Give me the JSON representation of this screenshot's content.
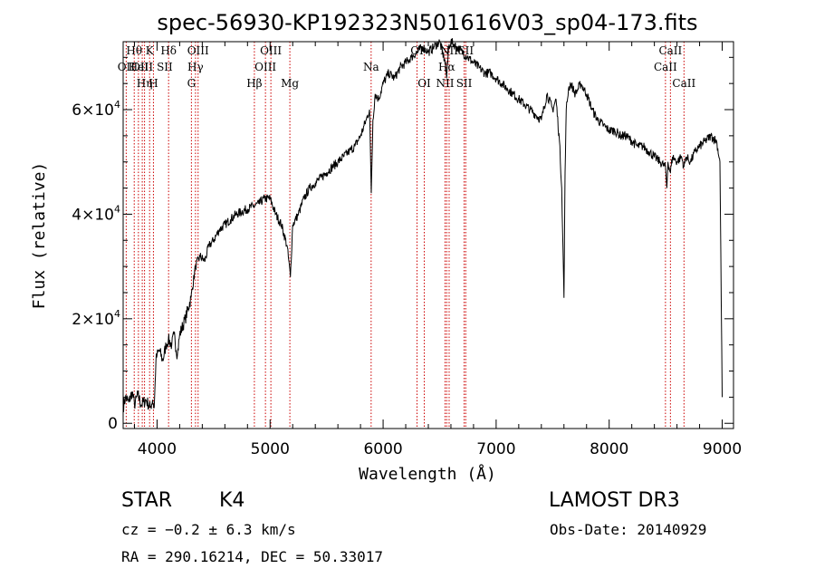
{
  "chart_data": {
    "type": "line",
    "title": "spec-56930-KP192323N501616V03_sp04-173.fits",
    "xlabel": "Wavelength (Å)",
    "ylabel": "Flux (relative)",
    "xlim": [
      3700,
      9100
    ],
    "ylim": [
      -1000,
      73000
    ],
    "x_ticks": [
      4000,
      5000,
      6000,
      7000,
      8000,
      9000
    ],
    "x_tick_labels": [
      "4000",
      "5000",
      "6000",
      "7000",
      "8000",
      "9000"
    ],
    "y_ticks": [
      0,
      20000,
      40000,
      60000
    ],
    "y_tick_labels": [
      {
        "mantissa": "0",
        "exp": ""
      },
      {
        "mantissa": "2×10",
        "exp": "4"
      },
      {
        "mantissa": "4×10",
        "exp": "4"
      },
      {
        "mantissa": "6×10",
        "exp": "4"
      }
    ],
    "series": [
      {
        "x": [
          3700,
          3720,
          3750,
          3780,
          3800,
          3830,
          3860,
          3900,
          3940,
          3960,
          3975,
          3990,
          4000,
          4020,
          4050,
          4080,
          4100,
          4130,
          4150,
          4180,
          4200,
          4250,
          4300,
          4340,
          4380,
          4420,
          4460,
          4500,
          4550,
          4600,
          4650,
          4700,
          4750,
          4800,
          4850,
          4900,
          4950,
          5000,
          5050,
          5100,
          5150,
          5180,
          5200,
          5250,
          5300,
          5350,
          5400,
          5450,
          5500,
          5550,
          5600,
          5650,
          5700,
          5750,
          5800,
          5850,
          5880,
          5895,
          5910,
          5930,
          5960,
          6000,
          6050,
          6100,
          6150,
          6200,
          6250,
          6300,
          6350,
          6400,
          6450,
          6500,
          6550,
          6563,
          6580,
          6600,
          6650,
          6700,
          6750,
          6800,
          6850,
          6900,
          6950,
          7000,
          7050,
          7100,
          7150,
          7200,
          7250,
          7300,
          7350,
          7400,
          7450,
          7500,
          7530,
          7560,
          7580,
          7600,
          7610,
          7620,
          7640,
          7660,
          7680,
          7700,
          7750,
          7800,
          7850,
          7900,
          7950,
          8000,
          8050,
          8100,
          8150,
          8200,
          8250,
          8300,
          8350,
          8400,
          8450,
          8498,
          8510,
          8520,
          8542,
          8560,
          8600,
          8640,
          8662,
          8680,
          8720,
          8760,
          8800,
          8850,
          8900,
          8950,
          8980,
          9000
        ],
        "y": [
          3000,
          5000,
          4000,
          6000,
          3500,
          5500,
          3500,
          4500,
          3000,
          4500,
          3000,
          12000,
          13000,
          14000,
          12000,
          15000,
          16000,
          15000,
          17000,
          13000,
          17000,
          20000,
          24000,
          30000,
          32000,
          31000,
          34000,
          35000,
          37000,
          38000,
          39000,
          40000,
          40500,
          41000,
          41500,
          42000,
          43000,
          43000,
          40000,
          38000,
          34000,
          28000,
          38000,
          40000,
          43000,
          45000,
          46000,
          47000,
          48000,
          49000,
          50000,
          51000,
          52000,
          53000,
          55000,
          58000,
          60000,
          44000,
          58000,
          63000,
          62000,
          65000,
          67000,
          66000,
          68000,
          69000,
          70000,
          71000,
          72000,
          71000,
          72000,
          73000,
          69000,
          66000,
          72000,
          73000,
          72000,
          71000,
          70000,
          69000,
          68000,
          67000,
          67000,
          66000,
          65000,
          64000,
          63000,
          62000,
          61000,
          60000,
          59000,
          58000,
          63000,
          60000,
          62000,
          54000,
          45000,
          24000,
          48000,
          60000,
          64000,
          65000,
          64000,
          63000,
          65000,
          63000,
          60000,
          58000,
          57000,
          56000,
          56000,
          55000,
          55000,
          54000,
          53000,
          53000,
          52000,
          51000,
          50000,
          49000,
          45000,
          50000,
          48000,
          51000,
          50000,
          51000,
          49000,
          51000,
          50000,
          52000,
          53000,
          54000,
          55000,
          54000,
          50000,
          5000
        ]
      }
    ],
    "emission_lines": [
      {
        "x": 3727,
        "row": 1,
        "label": "OII"
      },
      {
        "x": 3798,
        "row": 0,
        "label": "Hθ"
      },
      {
        "x": 3835,
        "row": 0,
        "label": ""
      },
      {
        "x": 3869,
        "row": 1,
        "label": "OIII"
      },
      {
        "x": 3889,
        "row": 0,
        "label": ""
      },
      {
        "x": 3934,
        "row": 0,
        "label": "K"
      },
      {
        "x": 3968,
        "row": 0,
        "label": ""
      },
      {
        "x": 4102,
        "row": 0,
        "label": "Hδ"
      },
      {
        "x": 4304,
        "row": 2,
        "label": "G"
      },
      {
        "x": 4340,
        "row": 1,
        "label": "Hγ"
      },
      {
        "x": 4363,
        "row": 0,
        "label": "OIII"
      },
      {
        "x": 4861,
        "row": 2,
        "label": "Hβ"
      },
      {
        "x": 4959,
        "row": 1,
        "label": "OIII"
      },
      {
        "x": 5007,
        "row": 0,
        "label": "OIII"
      },
      {
        "x": 5175,
        "row": 2,
        "label": "Mg"
      },
      {
        "x": 5894,
        "row": 1,
        "label": "Na"
      },
      {
        "x": 6300,
        "row": 0,
        "label": "OI"
      },
      {
        "x": 6364,
        "row": 2,
        "label": "OI"
      },
      {
        "x": 6548,
        "row": 2,
        "label": "NII"
      },
      {
        "x": 6563,
        "row": 1,
        "label": "Hα"
      },
      {
        "x": 6584,
        "row": 0,
        "label": "NII"
      },
      {
        "x": 6717,
        "row": 2,
        "label": "SII"
      },
      {
        "x": 6731,
        "row": 0,
        "label": "SII"
      },
      {
        "x": 8498,
        "row": 1,
        "label": "CaII"
      },
      {
        "x": 8542,
        "row": 0,
        "label": "CaII"
      },
      {
        "x": 8662,
        "row": 2,
        "label": "CaII"
      }
    ],
    "extra_line_labels": [
      {
        "x": 3835,
        "row": 1,
        "label": "HeI"
      },
      {
        "x": 3889,
        "row": 2,
        "label": "Hη"
      },
      {
        "x": 3968,
        "row": 2,
        "label": "H"
      },
      {
        "x": 4068,
        "row": 1,
        "label": "SII"
      }
    ],
    "line_color": "#cc0000",
    "grid": false
  },
  "info": {
    "object_class": "STAR",
    "subclass": "K4",
    "cz": "cz = −0.2 ± 6.3 km/s",
    "radec": "RA = 290.16214, DEC =  50.33017",
    "survey": "LAMOST DR3",
    "obs_date": "Obs-Date: 20140929"
  }
}
